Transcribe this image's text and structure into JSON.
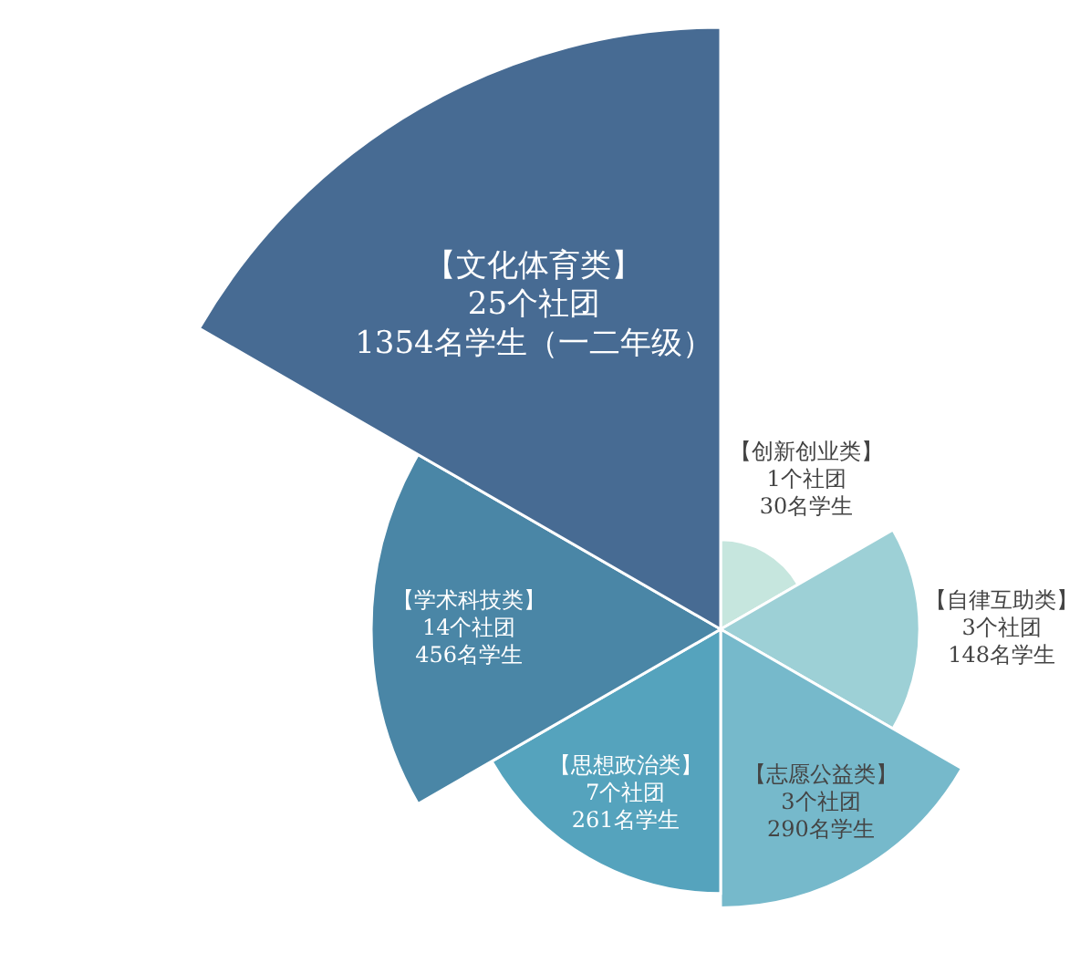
{
  "chart_data": {
    "type": "other",
    "categories": [
      "【创新创业类】",
      "【自律互助类】",
      "【志愿公益类】",
      "【思想政治类】",
      "【学术科技类】",
      "【文化体育类】"
    ],
    "colors": [
      "#c6e6de",
      "#9dd0d6",
      "#76b9cb",
      "#55a3bd",
      "#4a86a6",
      "#476b93"
    ],
    "values": [
      30,
      148,
      290,
      261,
      456,
      1354
    ],
    "value_labels": [
      "30名学生",
      "148名学生",
      "290名学生",
      "261名学生",
      "456名学生",
      "1354名学生（一二年级）"
    ],
    "annotations": [
      "1个社团",
      "3个社团",
      "3个社团",
      "7个社团",
      "14个社团",
      "25个社团"
    ]
  }
}
